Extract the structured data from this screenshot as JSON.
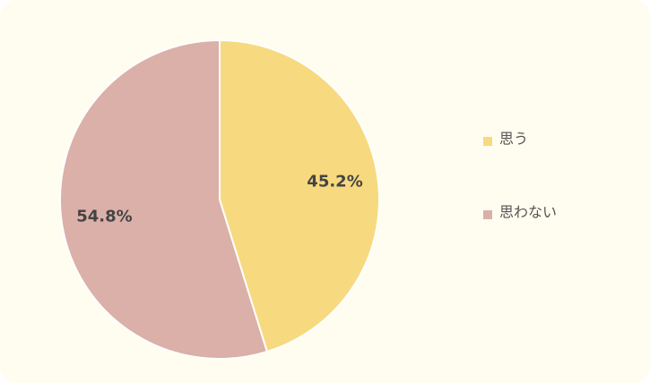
{
  "chart_data": {
    "type": "pie",
    "categories": [
      "思う",
      "思わない"
    ],
    "values": [
      45.2,
      54.8
    ],
    "value_labels": [
      "45.2%",
      "54.8%"
    ],
    "colors": [
      "#f7d97f",
      "#dbb0a8"
    ]
  }
}
